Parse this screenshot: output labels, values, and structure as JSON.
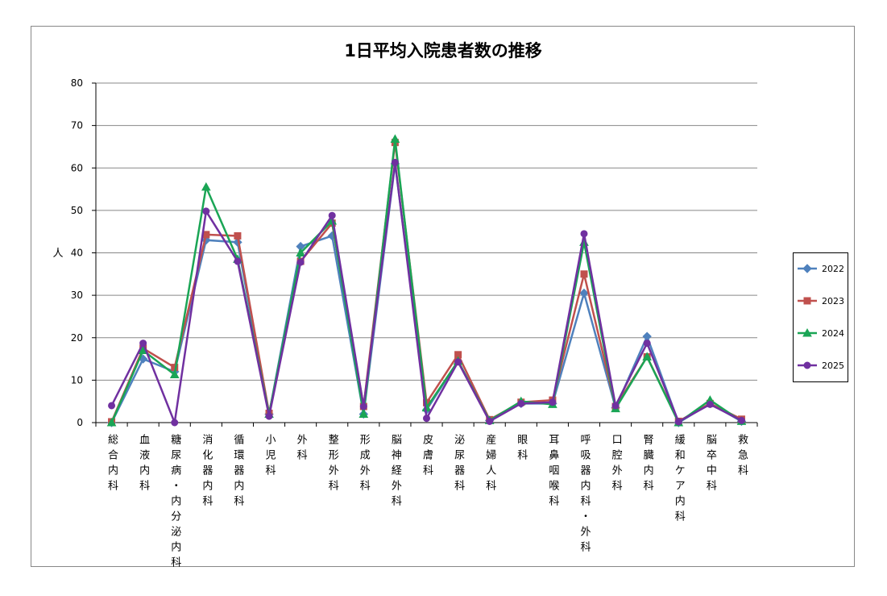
{
  "chart_data": {
    "type": "line",
    "title": "1日平均入院患者数の推移",
    "y_label": "人",
    "categories": [
      "総合内科",
      "血液内科",
      "糖尿病・内分泌内科",
      "消化器内科",
      "循環器内科",
      "小児科",
      "外科",
      "整形外科",
      "形成外科",
      "脳神経外科",
      "皮膚科",
      "泌尿器科",
      "産婦人科",
      "眼科",
      "耳鼻咽喉科",
      "呼吸器内科・外科",
      "口腔外科",
      "腎臓内科",
      "緩和ケア内科",
      "脳卒中科",
      "救急科"
    ],
    "series": [
      {
        "name": "2022",
        "color": "#4f81bd",
        "marker": "diamond",
        "values": [
          0,
          15,
          12,
          43,
          42.5,
          2,
          41.5,
          44,
          2,
          61,
          3,
          14.5,
          0.5,
          4.5,
          4.5,
          30.5,
          3.5,
          20.3,
          0,
          4.5,
          0.3
        ]
      },
      {
        "name": "2023",
        "color": "#c0504d",
        "marker": "square",
        "values": [
          0.2,
          17.5,
          13,
          44.3,
          44,
          2.2,
          38,
          47,
          3.8,
          66,
          4.7,
          16,
          0.7,
          4.8,
          5.3,
          35,
          3.8,
          15.5,
          0.3,
          4.5,
          0.8
        ]
      },
      {
        "name": "2024",
        "color": "#1aa555",
        "marker": "triangle",
        "values": [
          0,
          17,
          11.3,
          55.5,
          38.5,
          2,
          40,
          47.5,
          2,
          66.8,
          3.5,
          14.5,
          0.5,
          5,
          4.3,
          42.5,
          3.3,
          15.5,
          0,
          5.3,
          0.3
        ]
      },
      {
        "name": "2025",
        "color": "#7030a0",
        "marker": "circle",
        "values": [
          4,
          18.7,
          0,
          49.8,
          38,
          1.5,
          37.8,
          48.8,
          3.8,
          61.3,
          1,
          14.3,
          0.3,
          4.5,
          4.8,
          44.5,
          4,
          18.7,
          0.2,
          4.3,
          0.5
        ]
      }
    ],
    "ylim": [
      0,
      80
    ],
    "yticks": [
      0,
      10,
      20,
      30,
      40,
      50,
      60,
      70,
      80
    ],
    "grid": true,
    "legend": "right"
  }
}
